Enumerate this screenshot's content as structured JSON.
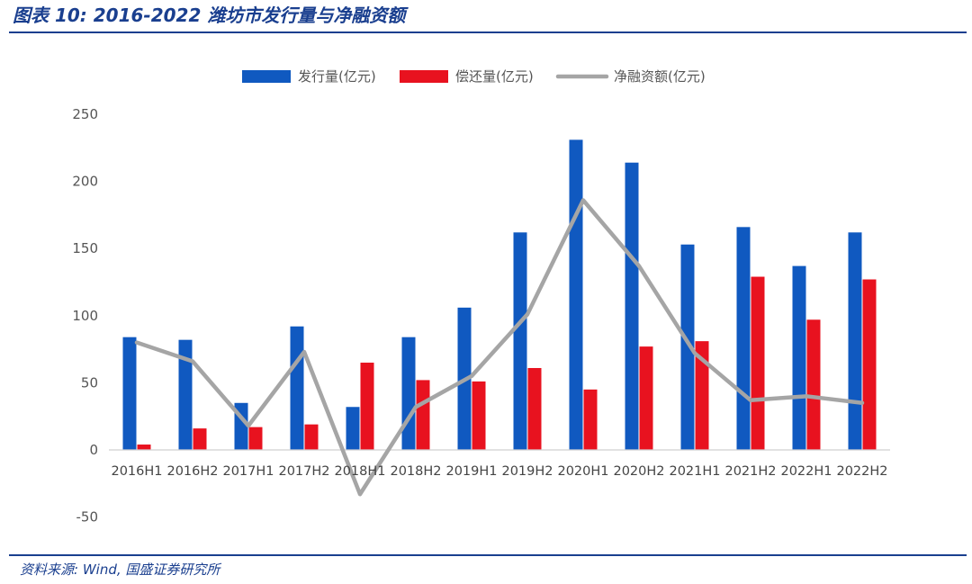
{
  "header": {
    "title": "图表 10:  2016-2022 潍坊市发行量与净融资额"
  },
  "footer": {
    "source": "资料来源:  Wind,  国盛证券研究所"
  },
  "colors": {
    "issuance": "#1059c0",
    "repayment": "#e8121f",
    "net_financing": "#a5a5a5",
    "accent": "#1a3f8f"
  },
  "chart_data": {
    "type": "bar",
    "title": "",
    "xlabel": "",
    "ylabel": "",
    "categories": [
      "2016H1",
      "2016H2",
      "2017H1",
      "2017H2",
      "2018H1",
      "2018H2",
      "2019H1",
      "2019H2",
      "2020H1",
      "2020H2",
      "2021H1",
      "2021H2",
      "2022H1",
      "2022H2"
    ],
    "ylim": [
      -50,
      250
    ],
    "yticks": [
      250,
      200,
      150,
      100,
      50,
      0,
      -50
    ],
    "grid": false,
    "legend_position": "top-center",
    "series": [
      {
        "name": "发行量(亿元)",
        "type": "bar",
        "values": [
          84,
          82,
          35,
          92,
          32,
          84,
          106,
          162,
          231,
          214,
          153,
          166,
          137,
          162
        ]
      },
      {
        "name": "偿还量(亿元)",
        "type": "bar",
        "values": [
          4,
          16,
          17,
          19,
          65,
          52,
          51,
          61,
          45,
          77,
          81,
          129,
          97,
          127
        ]
      },
      {
        "name": "净融资额(亿元)",
        "type": "line",
        "values": [
          80,
          66,
          18,
          73,
          -33,
          32,
          55,
          101,
          186,
          137,
          72,
          37,
          40,
          35
        ]
      }
    ]
  }
}
